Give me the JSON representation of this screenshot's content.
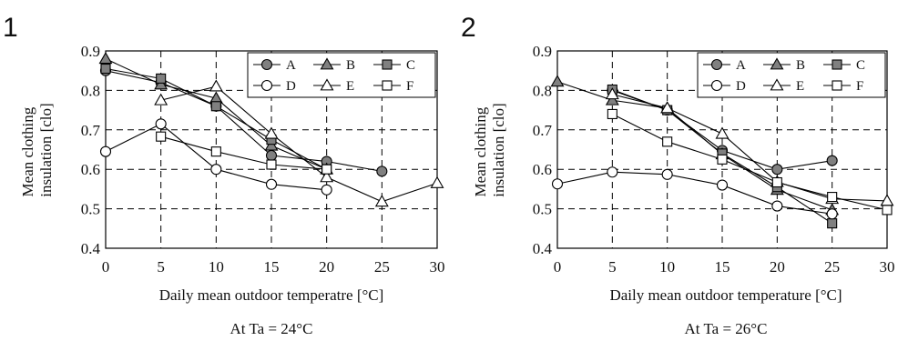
{
  "series_styles": {
    "A": {
      "marker": "circle",
      "fill": "#808080"
    },
    "B": {
      "marker": "triangle",
      "fill": "#808080"
    },
    "C": {
      "marker": "square",
      "fill": "#808080"
    },
    "D": {
      "marker": "circle",
      "fill": "#ffffff"
    },
    "E": {
      "marker": "triangle",
      "fill": "#ffffff"
    },
    "F": {
      "marker": "square",
      "fill": "#ffffff"
    }
  },
  "chart_data": [
    {
      "panel_label": "1",
      "type": "line",
      "xlabel": "Daily mean outdoor temperatre [°C]",
      "ylabel_lines": [
        "Mean clothing",
        "insulation [clo]"
      ],
      "caption": "At Ta =  24°C",
      "xlim": [
        0,
        30
      ],
      "ylim": [
        0.4,
        0.9
      ],
      "xticks": [
        0,
        5,
        10,
        15,
        20,
        25,
        30
      ],
      "yticks": [
        0.4,
        0.5,
        0.6,
        0.7,
        0.8,
        0.9
      ],
      "grid": true,
      "legend_position": "top-right",
      "series": [
        {
          "name": "A",
          "x": [
            0,
            5,
            10,
            15,
            20,
            25
          ],
          "y": [
            0.85,
            0.82,
            0.76,
            0.635,
            0.62,
            0.595
          ]
        },
        {
          "name": "B",
          "x": [
            0,
            5,
            10,
            15,
            20
          ],
          "y": [
            0.88,
            0.815,
            0.78,
            0.66,
            0.6
          ]
        },
        {
          "name": "C",
          "x": [
            0,
            5,
            10,
            15,
            20
          ],
          "y": [
            0.855,
            0.83,
            0.76,
            0.675,
            0.6
          ]
        },
        {
          "name": "D",
          "x": [
            0,
            5,
            10,
            15,
            20
          ],
          "y": [
            0.645,
            0.715,
            0.6,
            0.562,
            0.548
          ]
        },
        {
          "name": "E",
          "x": [
            5,
            10,
            15,
            20,
            25,
            30
          ],
          "y": [
            0.775,
            0.81,
            0.69,
            0.58,
            0.518,
            0.565
          ]
        },
        {
          "name": "F",
          "x": [
            5,
            10,
            15,
            20
          ],
          "y": [
            0.683,
            0.645,
            0.612,
            0.6
          ]
        }
      ]
    },
    {
      "panel_label": "2",
      "type": "line",
      "xlabel": "Daily mean outdoor temperature [°C]",
      "ylabel_lines": [
        "Mean clothing",
        "insulation [clo]"
      ],
      "caption": "At Ta =  26°C",
      "xlim": [
        0,
        30
      ],
      "ylim": [
        0.4,
        0.9
      ],
      "xticks": [
        0,
        5,
        10,
        15,
        20,
        25,
        30
      ],
      "yticks": [
        0.4,
        0.5,
        0.6,
        0.7,
        0.8,
        0.9
      ],
      "grid": true,
      "legend_position": "top-right",
      "series": [
        {
          "name": "A",
          "x": [
            5,
            10,
            15,
            20,
            25
          ],
          "y": [
            0.8,
            0.75,
            0.648,
            0.6,
            0.622
          ]
        },
        {
          "name": "B",
          "x": [
            0,
            5,
            10,
            15,
            20,
            25
          ],
          "y": [
            0.822,
            0.775,
            0.755,
            0.638,
            0.548,
            0.497
          ]
        },
        {
          "name": "C",
          "x": [
            5,
            10,
            15,
            20,
            25
          ],
          "y": [
            0.802,
            0.75,
            0.64,
            0.555,
            0.463
          ]
        },
        {
          "name": "D",
          "x": [
            0,
            5,
            10,
            15,
            20,
            25
          ],
          "y": [
            0.563,
            0.593,
            0.587,
            0.56,
            0.507,
            0.487
          ]
        },
        {
          "name": "E",
          "x": [
            5,
            10,
            15,
            20,
            25,
            30
          ],
          "y": [
            0.79,
            0.755,
            0.69,
            0.568,
            0.525,
            0.52
          ]
        },
        {
          "name": "F",
          "x": [
            5,
            10,
            15,
            20,
            25,
            30
          ],
          "y": [
            0.74,
            0.67,
            0.625,
            0.567,
            0.53,
            0.497
          ]
        }
      ]
    }
  ]
}
